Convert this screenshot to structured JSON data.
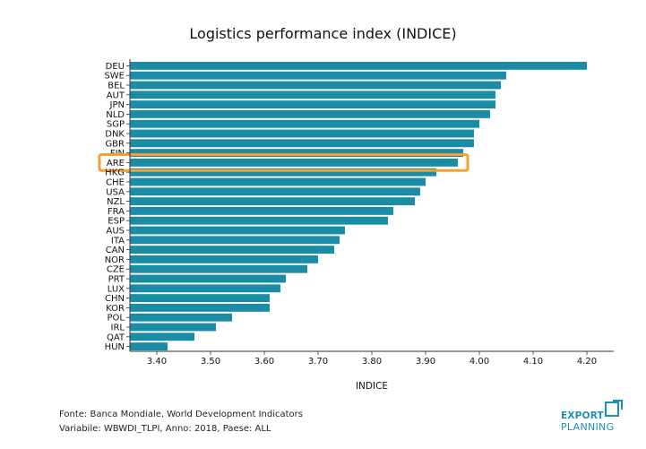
{
  "chart_data": {
    "type": "bar",
    "orientation": "horizontal",
    "title": "Logistics performance index (INDICE)",
    "xlabel": "INDICE",
    "ylabel": "",
    "xlim": [
      3.35,
      4.25
    ],
    "xticks": [
      "3.40",
      "3.50",
      "3.60",
      "3.70",
      "3.80",
      "3.90",
      "4.00",
      "4.10",
      "4.20"
    ],
    "xtick_values": [
      3.4,
      3.5,
      3.6,
      3.7,
      3.8,
      3.9,
      4.0,
      4.1,
      4.2
    ],
    "categories": [
      "DEU",
      "SWE",
      "BEL",
      "AUT",
      "JPN",
      "NLD",
      "SGP",
      "DNK",
      "GBR",
      "FIN",
      "ARE",
      "HKG",
      "CHE",
      "USA",
      "NZL",
      "FRA",
      "ESP",
      "AUS",
      "ITA",
      "CAN",
      "NOR",
      "CZE",
      "PRT",
      "LUX",
      "CHN",
      "KOR",
      "POL",
      "IRL",
      "QAT",
      "HUN"
    ],
    "values": [
      4.2,
      4.05,
      4.04,
      4.03,
      4.03,
      4.02,
      4.0,
      3.99,
      3.99,
      3.97,
      3.96,
      3.92,
      3.9,
      3.89,
      3.88,
      3.84,
      3.83,
      3.75,
      3.74,
      3.73,
      3.7,
      3.68,
      3.64,
      3.63,
      3.61,
      3.61,
      3.54,
      3.51,
      3.47,
      3.42
    ],
    "highlight": "ARE",
    "bar_color": "#1a8ca6",
    "highlight_color": "#f5a030",
    "grid": false
  },
  "source": {
    "line1": "Fonte: Banca Mondiale, World Development Indicators",
    "line2": "Variabile: WBWDI_TLPI, Anno: 2018, Paese: ALL"
  },
  "logo": {
    "line1": "EXPORT",
    "line2": "PLANNING",
    "color": "#1f8fb0"
  }
}
